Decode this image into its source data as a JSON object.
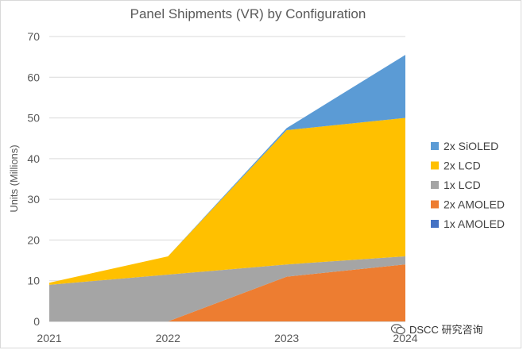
{
  "chart_data": {
    "type": "area",
    "stacked": true,
    "title": "Panel Shipments (VR) by Configuration",
    "xlabel": "",
    "ylabel": "Units (Millions)",
    "ylim": [
      0,
      70
    ],
    "yticks": [
      0,
      10,
      20,
      30,
      40,
      50,
      60,
      70
    ],
    "categories": [
      "2021",
      "2022",
      "2023",
      "2024"
    ],
    "grid": true,
    "legend_position": "right",
    "series": [
      {
        "name": "1x AMOLED",
        "color": "#4472c4",
        "values": [
          0,
          0,
          0,
          0
        ]
      },
      {
        "name": "2x AMOLED",
        "color": "#ed7d31",
        "values": [
          0,
          0,
          11,
          14
        ]
      },
      {
        "name": "1x LCD",
        "color": "#a5a5a5",
        "values": [
          9,
          11.5,
          3,
          2
        ]
      },
      {
        "name": "2x LCD",
        "color": "#ffc000",
        "values": [
          0.5,
          4.5,
          33,
          34
        ]
      },
      {
        "name": "2x SiOLED",
        "color": "#5b9bd5",
        "values": [
          0,
          0,
          0.5,
          15.5
        ]
      }
    ],
    "legend_order": [
      "2x SiOLED",
      "2x LCD",
      "1x LCD",
      "2x AMOLED",
      "1x AMOLED"
    ]
  },
  "watermark": {
    "text": "DSCC 研究咨询"
  }
}
